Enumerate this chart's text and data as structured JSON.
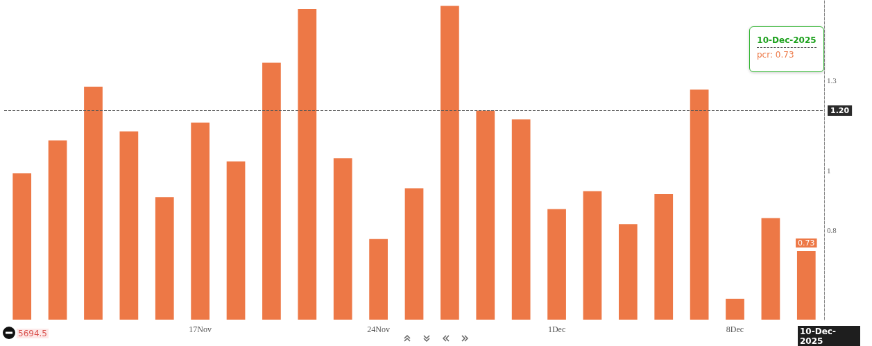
{
  "chart_data": {
    "type": "bar",
    "categories": [
      null,
      null,
      null,
      null,
      null,
      "17Nov",
      null,
      null,
      null,
      null,
      "24Nov",
      null,
      null,
      null,
      null,
      "1Dec",
      null,
      null,
      null,
      null,
      "8Dec",
      null,
      null
    ],
    "series": [
      {
        "color": "#ed7846",
        "values": [
          0.99,
          1.1,
          1.28,
          1.13,
          0.91,
          1.16,
          1.03,
          1.36,
          1.54,
          1.04,
          0.77,
          0.94,
          1.55,
          1.2,
          1.17,
          0.87,
          0.93,
          0.82,
          0.92,
          1.27,
          0.57,
          0.84,
          0.73
        ],
        "value_labels": [
          null,
          null,
          null,
          null,
          null,
          null,
          null,
          null,
          null,
          null,
          null,
          null,
          null,
          null,
          null,
          null,
          null,
          null,
          null,
          null,
          null,
          null,
          "0.73"
        ]
      }
    ],
    "ylim": [
      0.5,
      1.57
    ],
    "yticks": [
      0.8,
      1,
      1.3
    ],
    "grid": false,
    "ref_lines": [
      {
        "axis": "y",
        "value": 1.2,
        "label": "1.20",
        "line_style": "dashed",
        "color": "#555555"
      }
    ],
    "annotations": [
      "10-Dec-2025",
      "pcr: 0.73",
      "5694.5",
      "10-Dec-2025"
    ]
  }
}
